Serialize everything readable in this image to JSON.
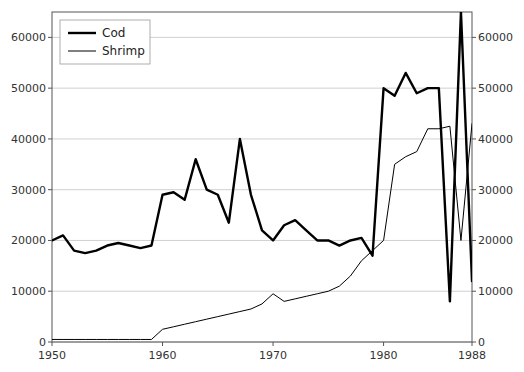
{
  "chart_data": {
    "type": "line",
    "x": [
      1950,
      1951,
      1952,
      1953,
      1954,
      1955,
      1956,
      1957,
      1958,
      1959,
      1960,
      1961,
      1962,
      1963,
      1964,
      1965,
      1966,
      1967,
      1968,
      1969,
      1970,
      1971,
      1972,
      1973,
      1974,
      1975,
      1976,
      1977,
      1978,
      1979,
      1980,
      1981,
      1982,
      1983,
      1984,
      1985,
      1986,
      1987,
      1988
    ],
    "series": [
      {
        "name": "Cod",
        "color": "#000000",
        "values": [
          20000,
          21000,
          18000,
          17500,
          18000,
          19000,
          19500,
          19000,
          18500,
          19000,
          29000,
          29500,
          28000,
          36000,
          30000,
          29000,
          23500,
          40000,
          29000,
          22000,
          20000,
          23000,
          24000,
          22000,
          20000,
          20000,
          19000,
          20000,
          20500,
          17000,
          50000,
          48500,
          53000,
          49000,
          50000,
          50000,
          8000,
          65000,
          12000
        ]
      },
      {
        "name": "Shrimp",
        "color": "#000000",
        "values": [
          500,
          500,
          500,
          500,
          500,
          500,
          500,
          500,
          500,
          500,
          2500,
          3000,
          3500,
          4000,
          4500,
          5000,
          5500,
          6000,
          6500,
          7500,
          9500,
          8000,
          8500,
          9000,
          9500,
          10000,
          11000,
          13000,
          16000,
          18000,
          20000,
          35000,
          36500,
          37500,
          42000,
          42000,
          42500,
          20000,
          43000
        ]
      }
    ],
    "xlim": [
      1950,
      1988
    ],
    "xticks": [
      1950,
      1960,
      1970,
      1980,
      1988
    ],
    "ylim": [
      0,
      65000
    ],
    "yticks": [
      0,
      10000,
      20000,
      30000,
      40000,
      50000,
      60000
    ],
    "y2lim": [
      0,
      65000
    ],
    "y2ticks": [
      0,
      10000,
      20000,
      30000,
      40000,
      50000,
      60000
    ],
    "grid": true,
    "legend": "upper left"
  }
}
